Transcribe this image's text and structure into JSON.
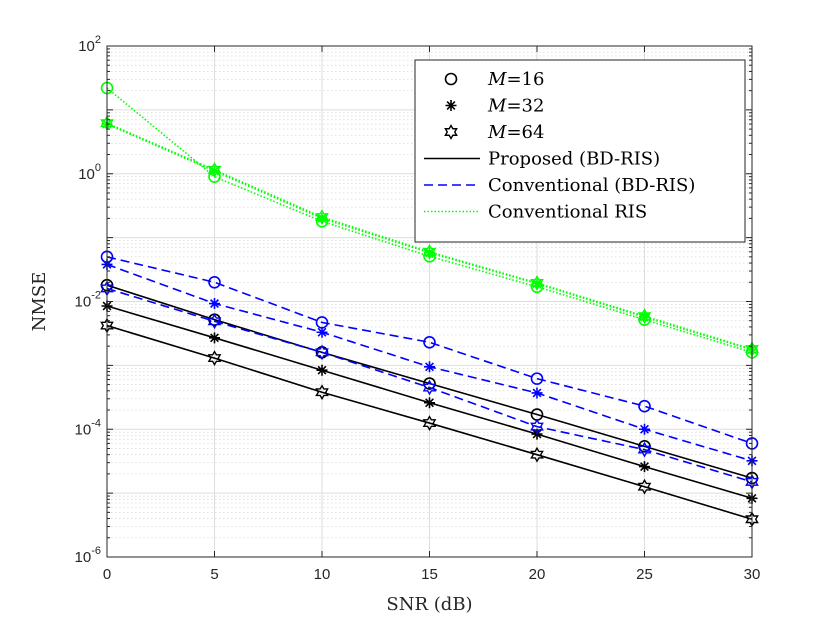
{
  "chart_data": {
    "type": "line",
    "title": "",
    "xlabel": "SNR (dB)",
    "ylabel": "NMSE",
    "xscale": "linear",
    "yscale": "log",
    "xlim": [
      0,
      30
    ],
    "ylim": [
      1e-06,
      100
    ],
    "grid": true,
    "x": [
      0,
      5,
      10,
      15,
      20,
      25,
      30
    ],
    "x_ticks": [
      "0",
      "5",
      "10",
      "15",
      "20",
      "25",
      "30"
    ],
    "y_ticks": [
      {
        "base": "10",
        "exp": "-6",
        "value": 1e-06
      },
      {
        "base": "10",
        "exp": "-4",
        "value": 0.0001
      },
      {
        "base": "10",
        "exp": "-2",
        "value": 0.01
      },
      {
        "base": "10",
        "exp": "0",
        "value": 1
      },
      {
        "base": "10",
        "exp": "2",
        "value": 100
      }
    ],
    "legend": {
      "position": "top-right",
      "markers": [
        {
          "marker": "circle",
          "prefix": "M",
          "text": "=16"
        },
        {
          "marker": "asterisk",
          "prefix": "M",
          "text": "=32"
        },
        {
          "marker": "hexagram",
          "prefix": "M",
          "text": "=64"
        }
      ],
      "lines": [
        {
          "style": "solid",
          "color": "#000000",
          "text": "Proposed (BD-RIS)"
        },
        {
          "style": "dashed",
          "color": "#0000ff",
          "text": "Conventional (BD-RIS)"
        },
        {
          "style": "dotted",
          "color": "#00ff00",
          "text": "Conventional RIS"
        }
      ]
    },
    "series": [
      {
        "name": "Proposed (BD-RIS), M=16",
        "method": "Proposed (BD-RIS)",
        "M": 16,
        "color": "#000000",
        "style": "solid",
        "marker": "circle",
        "values": [
          0.018,
          0.0052,
          0.0016,
          0.00052,
          0.00017,
          5.4e-05,
          1.72e-05
        ]
      },
      {
        "name": "Proposed (BD-RIS), M=32",
        "method": "Proposed (BD-RIS)",
        "M": 32,
        "color": "#000000",
        "style": "solid",
        "marker": "asterisk",
        "values": [
          0.0085,
          0.0027,
          0.00084,
          0.00026,
          8.4e-05,
          2.6e-05,
          8.3e-06
        ]
      },
      {
        "name": "Proposed (BD-RIS), M=64",
        "method": "Proposed (BD-RIS)",
        "M": 64,
        "color": "#000000",
        "style": "solid",
        "marker": "hexagram",
        "values": [
          0.0042,
          0.0013,
          0.00038,
          0.000125,
          4e-05,
          1.26e-05,
          3.9e-06
        ]
      },
      {
        "name": "Conventional (BD-RIS), M=16",
        "method": "Conventional (BD-RIS)",
        "M": 16,
        "color": "#0000ff",
        "style": "dashed",
        "marker": "circle",
        "values": [
          0.05,
          0.02,
          0.0047,
          0.0023,
          0.00062,
          0.00023,
          6e-05
        ]
      },
      {
        "name": "Conventional (BD-RIS), M=32",
        "method": "Conventional (BD-RIS)",
        "M": 32,
        "color": "#0000ff",
        "style": "dashed",
        "marker": "asterisk",
        "values": [
          0.038,
          0.0093,
          0.0033,
          0.00095,
          0.00037,
          0.0001,
          3.2e-05
        ]
      },
      {
        "name": "Conventional (BD-RIS), M=64",
        "method": "Conventional (BD-RIS)",
        "M": 64,
        "color": "#0000ff",
        "style": "dashed",
        "marker": "hexagram",
        "values": [
          0.016,
          0.0049,
          0.0016,
          0.00045,
          0.00011,
          4.8e-05,
          1.5e-05
        ]
      },
      {
        "name": "Conventional RIS, M=16",
        "method": "Conventional RIS",
        "M": 16,
        "color": "#00ff00",
        "style": "dotted",
        "marker": "circle",
        "values": [
          22,
          0.9,
          0.18,
          0.051,
          0.017,
          0.0052,
          0.0016
        ]
      },
      {
        "name": "Conventional RIS, M=32",
        "method": "Conventional RIS",
        "M": 32,
        "color": "#00ff00",
        "style": "dotted",
        "marker": "asterisk",
        "values": [
          6.0,
          1.1,
          0.2,
          0.058,
          0.019,
          0.0057,
          0.00175
        ]
      },
      {
        "name": "Conventional RIS, M=64",
        "method": "Conventional RIS",
        "M": 64,
        "color": "#00ff00",
        "style": "dotted",
        "marker": "hexagram",
        "values": [
          6.2,
          1.15,
          0.21,
          0.06,
          0.0195,
          0.0059,
          0.0018
        ]
      }
    ]
  }
}
